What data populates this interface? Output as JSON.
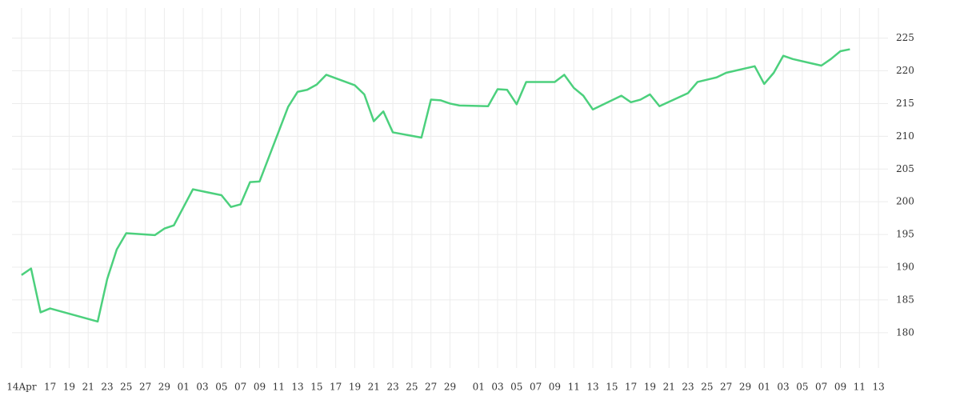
{
  "chart_data": {
    "type": "line",
    "x": [
      "04-14",
      "04-15",
      "04-16",
      "04-17",
      "04-22",
      "04-23",
      "04-24",
      "04-25",
      "04-28",
      "04-29",
      "04-30",
      "05-02",
      "05-05",
      "05-06",
      "05-07",
      "05-08",
      "05-09",
      "05-12",
      "05-13",
      "05-14",
      "05-15",
      "05-16",
      "05-19",
      "05-20",
      "05-21",
      "05-22",
      "05-23",
      "05-26",
      "05-27",
      "05-28",
      "05-29",
      "05-30",
      "06-02",
      "06-03",
      "06-04",
      "06-05",
      "06-06",
      "06-09",
      "06-10",
      "06-11",
      "06-12",
      "06-13",
      "06-16",
      "06-17",
      "06-18",
      "06-19",
      "06-20",
      "06-23",
      "06-24",
      "06-26",
      "06-27",
      "06-30",
      "07-01",
      "07-02",
      "07-03",
      "07-04",
      "07-07",
      "07-08",
      "07-09",
      "07-10"
    ],
    "series": [
      {
        "color": "#4cd07d",
        "values": [
          188.8,
          189.8,
          183.1,
          183.7,
          181.7,
          188.2,
          192.7,
          195.2,
          194.9,
          195.9,
          196.4,
          201.9,
          201.0,
          199.2,
          199.6,
          203.0,
          203.1,
          214.5,
          216.8,
          217.1,
          217.9,
          219.4,
          217.8,
          216.4,
          212.3,
          213.8,
          210.6,
          209.8,
          215.6,
          215.5,
          215.0,
          214.7,
          214.6,
          217.2,
          217.1,
          214.9,
          218.3,
          218.3,
          219.4,
          217.4,
          216.2,
          214.1,
          216.2,
          215.2,
          215.6,
          216.4,
          214.6,
          216.6,
          218.3,
          219.0,
          219.7,
          220.7,
          218.0,
          219.7,
          222.3,
          221.8,
          220.8,
          221.8,
          223.0,
          223.3
        ]
      }
    ],
    "xlim": [
      "04-13",
      "07-14"
    ],
    "xticks": [
      {
        "value": "04-14",
        "label": "14Apr"
      },
      {
        "value": "04-17",
        "label": "17"
      },
      {
        "value": "04-19",
        "label": "19"
      },
      {
        "value": "04-21",
        "label": "21"
      },
      {
        "value": "04-23",
        "label": "23"
      },
      {
        "value": "04-25",
        "label": "25"
      },
      {
        "value": "04-27",
        "label": "27"
      },
      {
        "value": "04-29",
        "label": "29"
      },
      {
        "value": "05-01",
        "label": "01"
      },
      {
        "value": "05-03",
        "label": "03"
      },
      {
        "value": "05-05",
        "label": "05"
      },
      {
        "value": "05-07",
        "label": "07"
      },
      {
        "value": "05-09",
        "label": "09"
      },
      {
        "value": "05-11",
        "label": "11"
      },
      {
        "value": "05-13",
        "label": "13"
      },
      {
        "value": "05-15",
        "label": "15"
      },
      {
        "value": "05-17",
        "label": "17"
      },
      {
        "value": "05-19",
        "label": "19"
      },
      {
        "value": "05-21",
        "label": "21"
      },
      {
        "value": "05-23",
        "label": "23"
      },
      {
        "value": "05-25",
        "label": "25"
      },
      {
        "value": "05-27",
        "label": "27"
      },
      {
        "value": "05-29",
        "label": "29"
      },
      {
        "value": "06-01",
        "label": "01"
      },
      {
        "value": "06-03",
        "label": "03"
      },
      {
        "value": "06-05",
        "label": "05"
      },
      {
        "value": "06-07",
        "label": "07"
      },
      {
        "value": "06-09",
        "label": "09"
      },
      {
        "value": "06-11",
        "label": "11"
      },
      {
        "value": "06-13",
        "label": "13"
      },
      {
        "value": "06-15",
        "label": "15"
      },
      {
        "value": "06-17",
        "label": "17"
      },
      {
        "value": "06-19",
        "label": "19"
      },
      {
        "value": "06-21",
        "label": "21"
      },
      {
        "value": "06-23",
        "label": "23"
      },
      {
        "value": "06-25",
        "label": "25"
      },
      {
        "value": "06-27",
        "label": "27"
      },
      {
        "value": "06-29",
        "label": "29"
      },
      {
        "value": "07-01",
        "label": "01"
      },
      {
        "value": "07-03",
        "label": "03"
      },
      {
        "value": "07-05",
        "label": "05"
      },
      {
        "value": "07-07",
        "label": "07"
      },
      {
        "value": "07-09",
        "label": "09"
      },
      {
        "value": "07-11",
        "label": "11"
      },
      {
        "value": "07-13",
        "label": "13"
      }
    ],
    "ylim": [
      174.6,
      229.6
    ],
    "yticks": [
      180,
      185,
      190,
      195,
      200,
      205,
      210,
      215,
      220,
      225
    ],
    "grid": true
  }
}
